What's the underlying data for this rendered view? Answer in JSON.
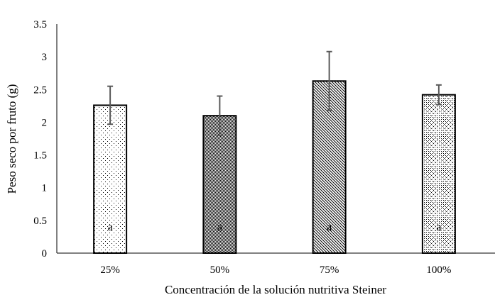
{
  "chart_data": {
    "type": "bar",
    "categories": [
      "25%",
      "50%",
      "75%",
      "100%"
    ],
    "values": [
      2.26,
      2.1,
      2.63,
      2.42
    ],
    "error": [
      0.29,
      0.3,
      0.45,
      0.15
    ],
    "labels": [
      "a",
      "a",
      "a",
      "a"
    ],
    "patterns": [
      "sparse-dots",
      "dense-checker",
      "diagonal-hatch",
      "dotted-diamond"
    ],
    "title": "",
    "xlabel": "Concentración de la solución nutritiva Steiner",
    "ylabel": "Peso seco por fruto (g)",
    "ylim": [
      0,
      3.5
    ],
    "yticks": [
      "0",
      "0.5",
      "1",
      "1.5",
      "2",
      "2.5",
      "3",
      "3.5"
    ],
    "grid": false,
    "colors": {
      "bar_fill": "#ffffff",
      "bar_edge": "#000000",
      "error_bar": "#595959"
    }
  }
}
